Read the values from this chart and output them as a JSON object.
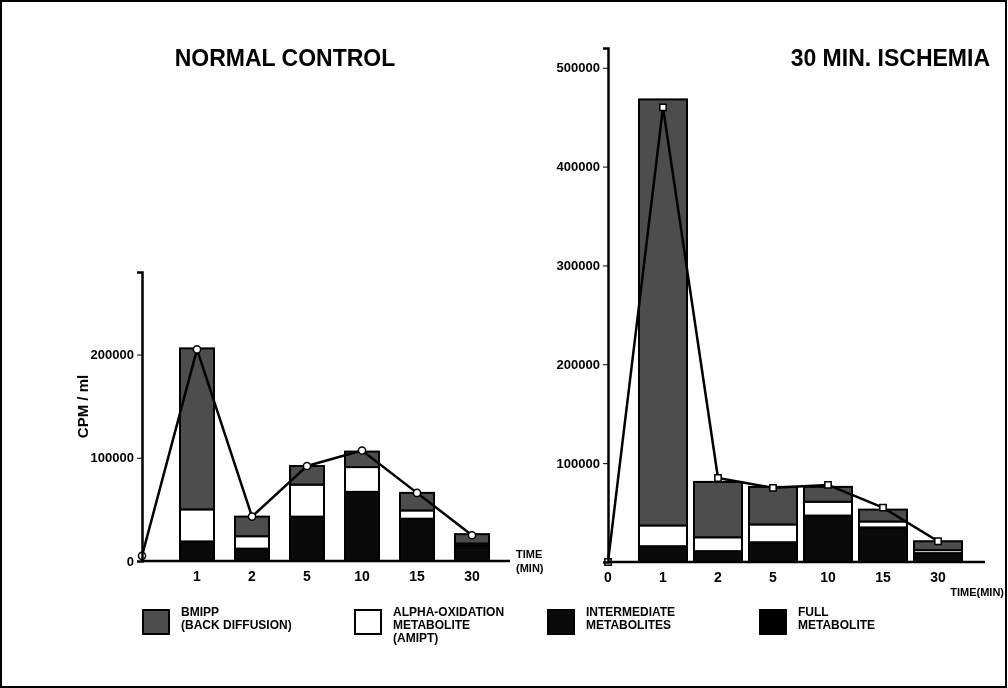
{
  "chart_data": [
    {
      "type": "bar",
      "title": "NORMAL CONTROL",
      "xlabel": "TIME\n(MIN)",
      "ylabel": "CPM / ml",
      "stacked": true,
      "legend": "bottom",
      "marker": "circle",
      "categories": [
        null,
        "1",
        "2",
        "5",
        "10",
        "15",
        "30"
      ],
      "ylim": [
        0,
        280000
      ],
      "yticks": [
        0,
        100000,
        200000
      ],
      "series": [
        {
          "name": "FULL\nMETABOLITE",
          "color": "#000000",
          "values": [
            null,
            null,
            null,
            null,
            null,
            null,
            null
          ]
        },
        {
          "name": "INTERMEDIATE\nMETABOLITES",
          "color": "#0a0a0a",
          "values": [
            null,
            19000,
            12000,
            43000,
            67000,
            41000,
            15000
          ]
        },
        {
          "name": "ALPHA-OXIDATION\nMETABOLITE\n(AMIPT)",
          "color": "#ffffff",
          "values": [
            null,
            31000,
            12000,
            31000,
            24000,
            8000,
            2000
          ]
        },
        {
          "name": "BMIPP\n(BACK DIFFUSION)",
          "color": "#4d4d4d",
          "values": [
            null,
            156000,
            19000,
            18000,
            15000,
            17000,
            9000
          ]
        },
        {
          "type": "line",
          "color": "#000000",
          "values": [
            5000,
            205000,
            43000,
            92000,
            107000,
            66000,
            25000
          ]
        }
      ]
    },
    {
      "type": "bar",
      "title": "30 MIN.  ISCHEMIA",
      "xlabel": "TIME(MIN)",
      "stacked": true,
      "marker": "square",
      "categories": [
        "0",
        "1",
        "2",
        "5",
        "10",
        "15",
        "30"
      ],
      "ylim": [
        0,
        520000
      ],
      "yticks": [
        100000,
        200000,
        300000,
        400000,
        500000
      ],
      "series": [
        {
          "color": "#000000",
          "values": [
            null,
            null,
            null,
            null,
            null,
            null,
            null
          ]
        },
        {
          "color": "#0a0a0a",
          "values": [
            null,
            16000,
            11000,
            20000,
            47000,
            35000,
            9000
          ]
        },
        {
          "color": "#ffffff",
          "values": [
            null,
            21000,
            14000,
            18000,
            14000,
            6000,
            3000
          ]
        },
        {
          "color": "#4d4d4d",
          "values": [
            null,
            431000,
            56000,
            38000,
            15000,
            12000,
            9000
          ]
        },
        {
          "type": "line",
          "color": "#000000",
          "values": [
            0,
            460000,
            85000,
            75000,
            78000,
            55000,
            21000
          ]
        }
      ]
    }
  ]
}
